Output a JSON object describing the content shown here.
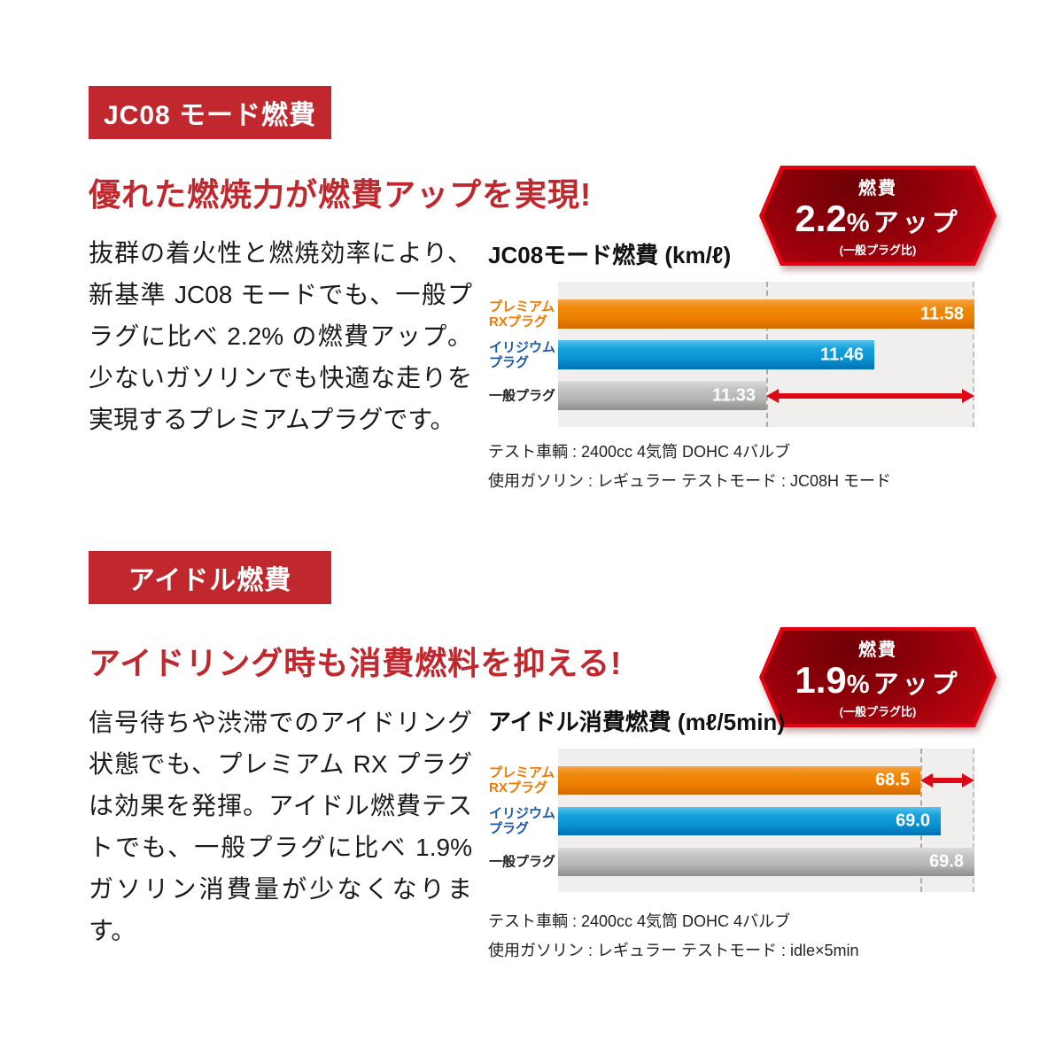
{
  "colors": {
    "accent_red": "#c1282e",
    "bright_red": "#e20613",
    "arrow_red": "#dd0716",
    "bar_orange": "#ee8000",
    "bar_blue": "#0a93d2",
    "bar_gray": "#b5b5b3",
    "plot_bg": "#f0efed"
  },
  "sections": [
    {
      "badge": "JC08 モード燃費",
      "headline": "優れた燃焼力が燃費アップを実現!",
      "body": "抜群の着火性と燃焼効率により、新基準 JC08 モードでも、一般プラグに比べ 2.2% の燃費アップ。少ないガソリンでも快適な走りを実現するプレミアムプラグです。",
      "hex_badge": {
        "label": "燃費",
        "value": "2.2",
        "suffix": "%アップ",
        "note": "(一般プラグ比)"
      },
      "notes": [
        "テスト車輌 : 2400cc 4気筒 DOHC 4バルブ",
        "使用ガソリン : レギュラー  テストモード : JC08H モード"
      ]
    },
    {
      "badge": "アイドル燃費",
      "headline": "アイドリング時も消費燃料を抑える!",
      "body": "信号待ちや渋滞でのアイドリング状態でも、プレミアム RX プラグは効果を発揮。アイドル燃費テストでも、一般プラグに比べ 1.9% ガソリン消費量が少なくなります。",
      "hex_badge": {
        "label": "燃費",
        "value": "1.9",
        "suffix": "%アップ",
        "note": "(一般プラグ比)"
      },
      "notes": [
        "テスト車輌 : 2400cc 4気筒 DOHC 4バルブ",
        "使用ガソリン : レギュラー  テストモード : idle×5min"
      ]
    }
  ],
  "chart_data": [
    {
      "type": "bar",
      "orientation": "horizontal",
      "title": "JC08モード燃費 (km/ℓ)",
      "unit": "km/ℓ",
      "categories": [
        "プレミアムRXプラグ",
        "イリジウムプラグ",
        "一般プラグ"
      ],
      "category_lines": [
        [
          "プレミアム",
          "RXプラグ"
        ],
        [
          "イリジウム",
          "プラグ"
        ],
        [
          "一般プラグ"
        ]
      ],
      "category_ids": [
        "premium-rx-plug",
        "iridium-plug",
        "standard-plug"
      ],
      "category_colors": [
        "#ee7a00",
        "#1d5ca5",
        "#222222"
      ],
      "bar_styles": [
        "orange",
        "blue",
        "gray"
      ],
      "values": [
        11.58,
        11.46,
        11.33
      ],
      "value_labels": [
        "11.58",
        "11.46",
        "11.33"
      ],
      "axis_min": 11.08,
      "axis_max": 11.58,
      "dashed_lines_at_values": [
        11.33,
        11.58
      ],
      "arrow": {
        "row": 2,
        "from_value": 11.33,
        "to_value": 11.58,
        "meaning": "燃費 2.2%アップ (一般プラグ比)"
      },
      "grid": false,
      "legend": "none"
    },
    {
      "type": "bar",
      "orientation": "horizontal",
      "title": "アイドル消費燃費 (mℓ/5min)",
      "unit": "mℓ/5min",
      "categories": [
        "プレミアムRXプラグ",
        "イリジウムプラグ",
        "一般プラグ"
      ],
      "category_lines": [
        [
          "プレミアム",
          "RXプラグ"
        ],
        [
          "イリジウム",
          "プラグ"
        ],
        [
          "一般プラグ"
        ]
      ],
      "category_ids": [
        "premium-rx-plug",
        "iridium-plug",
        "standard-plug"
      ],
      "category_colors": [
        "#ee7a00",
        "#1d5ca5",
        "#222222"
      ],
      "bar_styles": [
        "orange",
        "blue",
        "gray"
      ],
      "values": [
        68.5,
        69.0,
        69.8
      ],
      "value_labels": [
        "68.5",
        "69.0",
        "69.8"
      ],
      "axis_min": 59.8,
      "axis_max": 69.8,
      "dashed_lines_at_values": [
        68.5,
        69.8
      ],
      "arrow": {
        "row": 0,
        "from_value": 68.5,
        "to_value": 69.8,
        "meaning": "燃費 1.9%アップ (一般プラグ比)"
      },
      "grid": false,
      "legend": "none"
    }
  ]
}
